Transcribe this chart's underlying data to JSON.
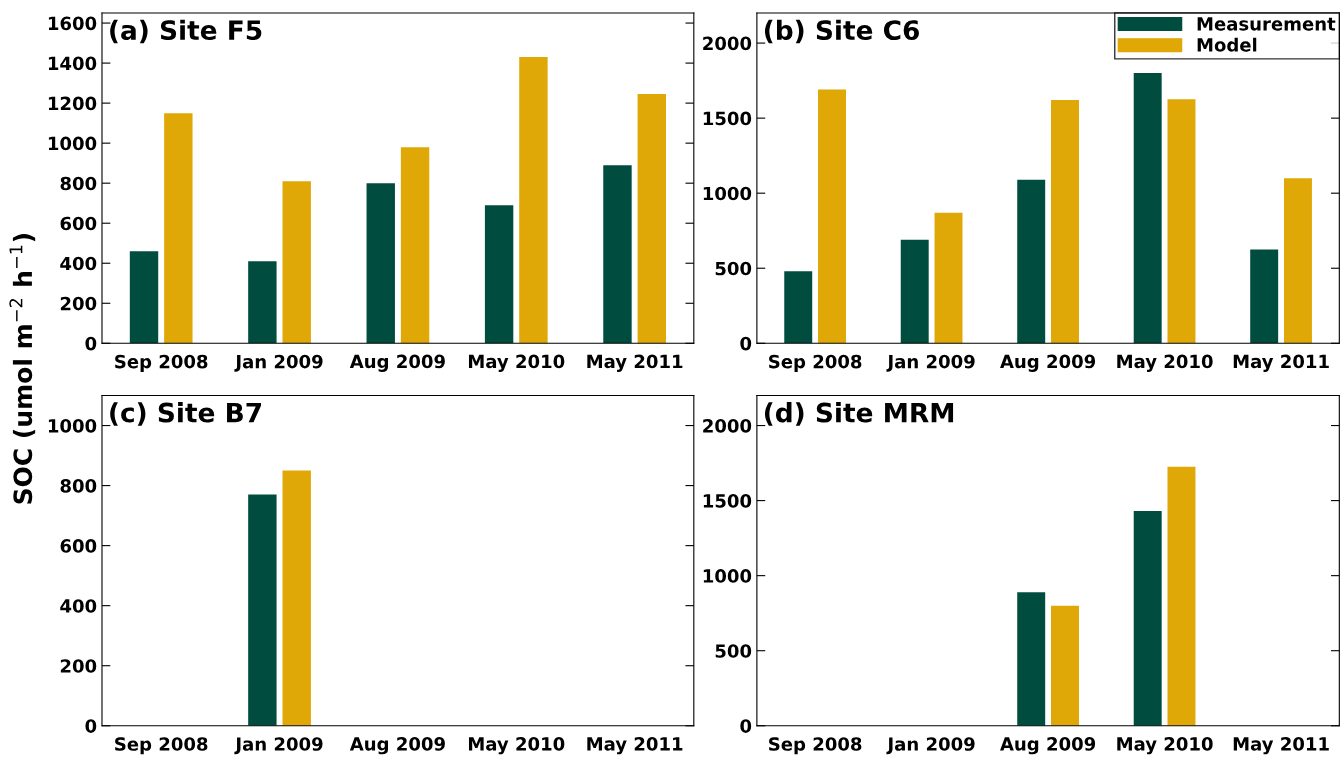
{
  "chart_data": [
    {
      "type": "bar",
      "title": "(a) Site F5",
      "ylabel": "SOC (umol m$^{−2}$ h$^{−1}$)",
      "categories": [
        "Sep 2008",
        "Jan 2009",
        "Aug 2009",
        "May 2010",
        "May 2011"
      ],
      "ylim": [
        0,
        1650
      ],
      "yticks": [
        0,
        200,
        400,
        600,
        800,
        1000,
        1200,
        1400,
        1600
      ],
      "grid": false,
      "legend": false,
      "series": [
        {
          "color": "#004d40",
          "values": [
            460,
            410,
            800,
            690,
            890
          ]
        },
        {
          "color": "#dfa806",
          "values": [
            1150,
            810,
            980,
            1430,
            1245
          ]
        }
      ]
    },
    {
      "type": "bar",
      "title": "(b) Site C6",
      "categories": [
        "Sep 2008",
        "Jan 2009",
        "Aug 2009",
        "May 2010",
        "May 2011"
      ],
      "ylim": [
        0,
        2200
      ],
      "yticks": [
        0,
        500,
        1000,
        1500,
        2000
      ],
      "grid": false,
      "legend": "top right",
      "series": [
        {
          "name": "Measurement",
          "color": "#004d40",
          "values": [
            480,
            690,
            1090,
            1800,
            625
          ]
        },
        {
          "name": "Model",
          "color": "#dfa806",
          "values": [
            1690,
            870,
            1620,
            1625,
            1100
          ]
        }
      ]
    },
    {
      "type": "bar",
      "title": "(c) Site B7",
      "categories": [
        "Sep 2008",
        "Jan 2009",
        "Aug 2009",
        "May 2010",
        "May 2011"
      ],
      "ylim": [
        0,
        1100
      ],
      "yticks": [
        0,
        200,
        400,
        600,
        800,
        1000
      ],
      "grid": false,
      "legend": false,
      "series": [
        {
          "color": "#004d40",
          "values": [
            null,
            770,
            null,
            null,
            null
          ]
        },
        {
          "color": "#dfa806",
          "values": [
            null,
            850,
            null,
            null,
            null
          ]
        }
      ]
    },
    {
      "type": "bar",
      "title": "(d) Site MRM",
      "categories": [
        "Sep 2008",
        "Jan 2009",
        "Aug 2009",
        "May 2010",
        "May 2011"
      ],
      "ylim": [
        0,
        2200
      ],
      "yticks": [
        0,
        500,
        1000,
        1500,
        2000
      ],
      "grid": false,
      "legend": false,
      "series": [
        {
          "color": "#004d40",
          "values": [
            null,
            null,
            890,
            1430,
            null
          ]
        },
        {
          "color": "#dfa806",
          "values": [
            null,
            null,
            800,
            1725,
            null
          ]
        }
      ]
    }
  ]
}
